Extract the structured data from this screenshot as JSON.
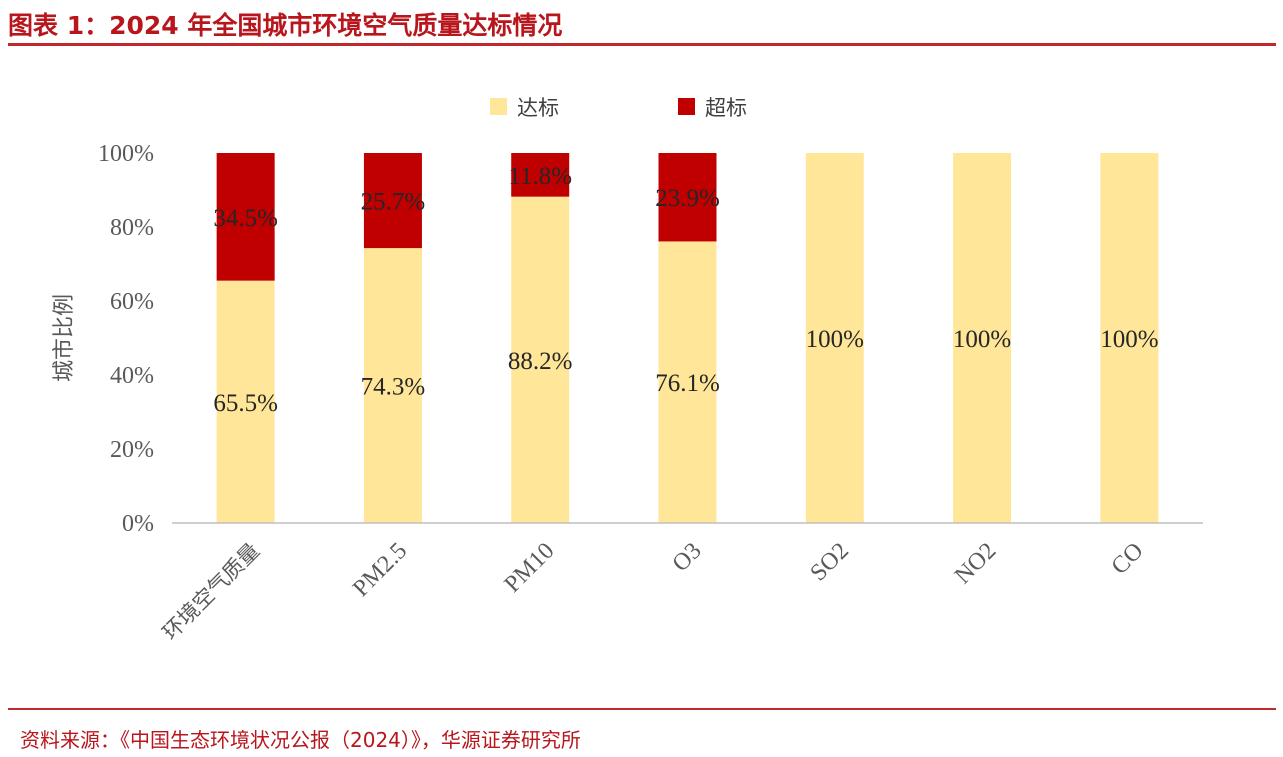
{
  "header": {
    "title": "图表 1：2024 年全国城市环境空气质量达标情况"
  },
  "footer": {
    "source": "资料来源：《中国生态环境状况公报（2024）》，华源证券研究所"
  },
  "chart_data": {
    "type": "bar",
    "stacked": true,
    "categories": [
      "环境空气质量",
      "PM2.5",
      "PM10",
      "O3",
      "SO2",
      "NO2",
      "CO"
    ],
    "series": [
      {
        "name": "达标",
        "color": "#ffe699",
        "values": [
          65.5,
          74.3,
          88.2,
          76.1,
          100,
          100,
          100
        ],
        "labels": [
          "65.5%",
          "74.3%",
          "88.2%",
          "76.1%",
          "100%",
          "100%",
          "100%"
        ]
      },
      {
        "name": "超标",
        "color": "#c00000",
        "values": [
          34.5,
          25.7,
          11.8,
          23.9,
          0,
          0,
          0
        ],
        "labels": [
          "34.5%",
          "25.7%",
          "11.8%",
          "23.9%",
          "",
          "",
          ""
        ]
      }
    ],
    "ylabel": "城市比例",
    "xlabel": "",
    "ylim": [
      0,
      100
    ],
    "yticks": [
      "0%",
      "20%",
      "40%",
      "60%",
      "80%",
      "100%"
    ],
    "grid": false,
    "legend_position": "top-center"
  }
}
